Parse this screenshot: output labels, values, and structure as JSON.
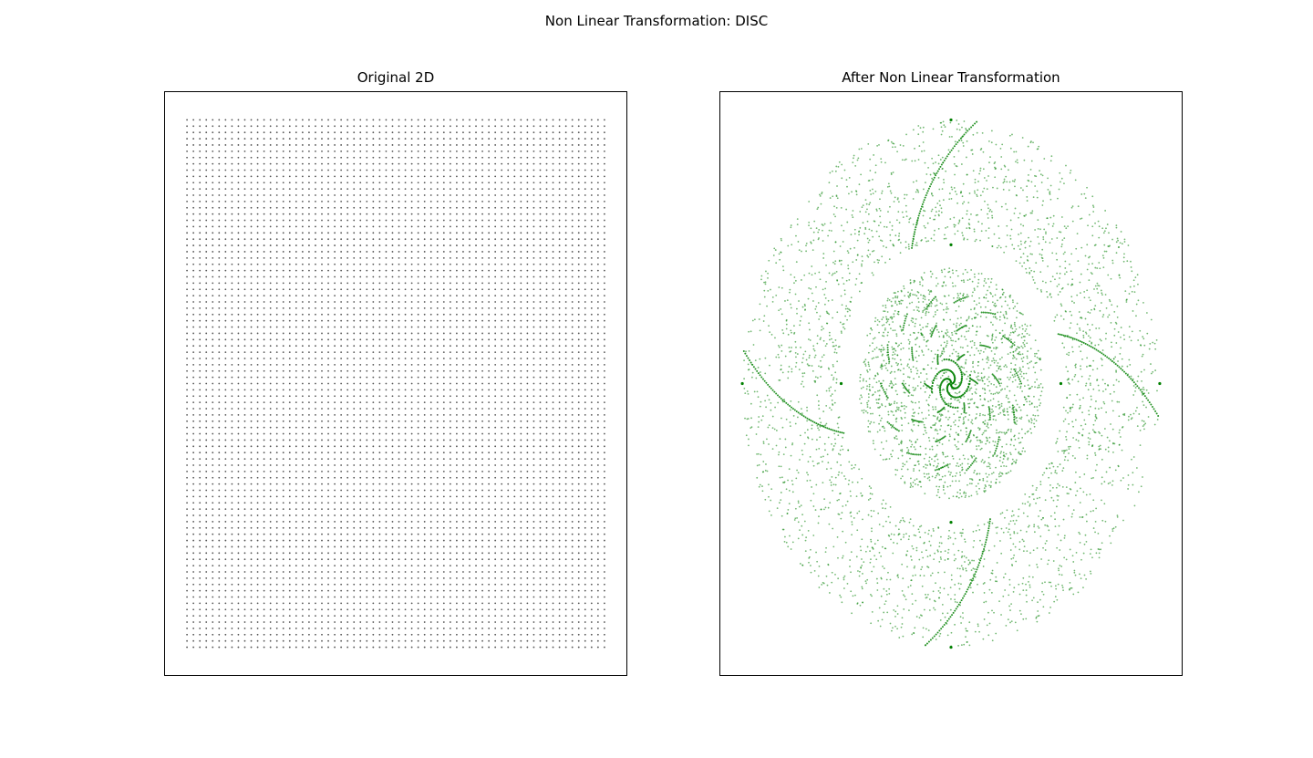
{
  "figure": {
    "title": "Non Linear Transformation: DISC"
  },
  "chart_data": [
    {
      "type": "scatter",
      "title": "Original 2D",
      "xlabel": "",
      "ylabel": "",
      "ticks_visible": false,
      "grid": false,
      "xlim": [
        -1.05,
        1.05
      ],
      "ylim": [
        -1.05,
        1.05
      ],
      "marker_color": "#555555",
      "point_grid": {
        "x_start": -0.95,
        "x_stop": 0.95,
        "x_count": 66,
        "y_start": -0.95,
        "y_stop": 0.95,
        "y_count": 85
      },
      "series": [
        {
          "x_range": [
            -0.95,
            0.95
          ],
          "y_range": [
            -0.95,
            0.95
          ]
        }
      ]
    },
    {
      "type": "scatter",
      "title": "After Non Linear Transformation",
      "xlabel": "",
      "ylabel": "",
      "ticks_visible": false,
      "grid": false,
      "xlim": [
        -1.05,
        1.05
      ],
      "ylim": [
        -1.05,
        1.05
      ],
      "marker_color": "#008000",
      "marker_alpha": 0.55,
      "transform": "disc swirl",
      "series": [
        {
          "inner_disc_radius": 0.42,
          "outer_ring_inner_radius": 0.52,
          "outer_ring_outer_radius": 0.95,
          "arms": 4
        }
      ]
    }
  ]
}
